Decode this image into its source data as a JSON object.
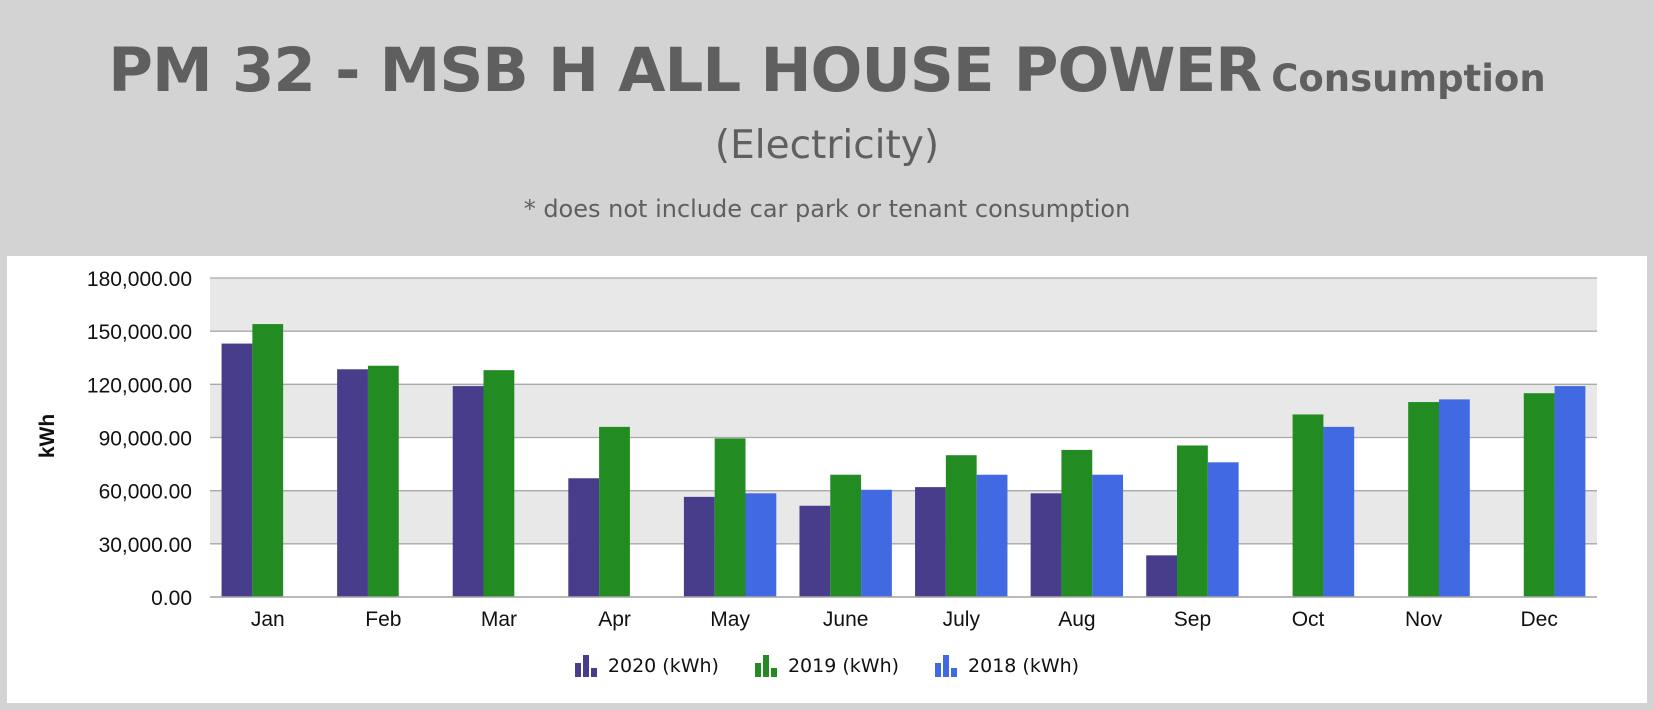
{
  "header": {
    "title_main": "PM 32 - MSB H ALL HOUSE POWER",
    "title_suffix": "Consumption",
    "subtitle": "(Electricity)",
    "note": "* does not include car park or tenant consumption"
  },
  "chart_data": {
    "type": "bar",
    "title": "PM 32 - MSB H ALL HOUSE POWER Consumption",
    "subtitle": "(Electricity)",
    "ylabel": "kWh",
    "xlabel": "",
    "ylim": [
      0,
      180000
    ],
    "yticks": [
      "0.00",
      "30,000.00",
      "60,000.00",
      "90,000.00",
      "120,000.00",
      "150,000.00",
      "180,000.00"
    ],
    "ytick_values": [
      0,
      30000,
      60000,
      90000,
      120000,
      150000,
      180000
    ],
    "categories": [
      "Jan",
      "Feb",
      "Mar",
      "Apr",
      "May",
      "June",
      "July",
      "Aug",
      "Sep",
      "Oct",
      "Nov",
      "Dec"
    ],
    "series": [
      {
        "name": "2020 (kWh)",
        "color": "#483d8b",
        "values": [
          143000,
          128500,
          119000,
          67000,
          56500,
          51500,
          62000,
          58500,
          23500,
          null,
          null,
          null
        ]
      },
      {
        "name": "2019 (kWh)",
        "color": "#228b22",
        "values": [
          154000,
          130500,
          128000,
          96000,
          89500,
          69000,
          80000,
          83000,
          85500,
          103000,
          110000,
          115000
        ]
      },
      {
        "name": "2018 (kWh)",
        "color": "#4169e1",
        "values": [
          null,
          null,
          null,
          null,
          58500,
          60500,
          69000,
          69000,
          76000,
          96000,
          111500,
          119000
        ]
      }
    ],
    "grid": true,
    "legend_position": "bottom-center",
    "band_color": "#e8e8e8"
  }
}
